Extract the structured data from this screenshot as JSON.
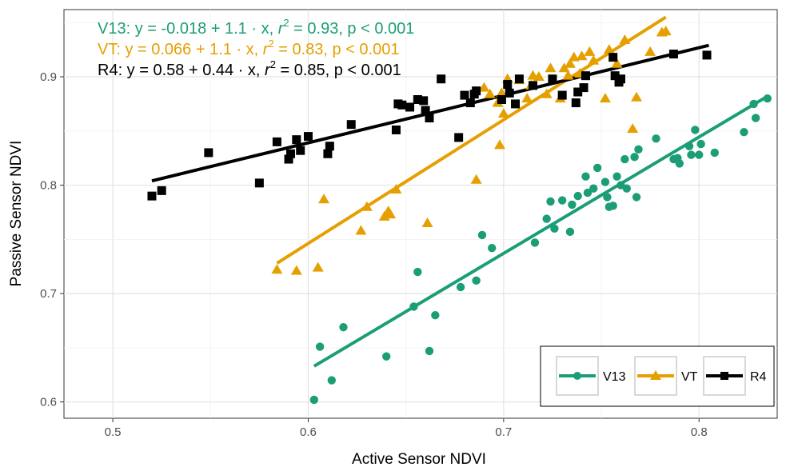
{
  "chart_data": {
    "type": "scatter",
    "xlabel": "Active Sensor NDVI",
    "ylabel": "Passive Sensor NDVI",
    "xlim": [
      0.475,
      0.84
    ],
    "ylim": [
      0.585,
      0.962
    ],
    "xticks": [
      0.5,
      0.6,
      0.7,
      0.8
    ],
    "yticks": [
      0.6,
      0.7,
      0.8,
      0.9
    ],
    "xtick_labels": [
      "0.5",
      "0.6",
      "0.7",
      "0.8"
    ],
    "ytick_labels": [
      "0.6",
      "0.7",
      "0.8",
      "0.9"
    ],
    "grid": true,
    "legend_position": "bottom-right",
    "annotations": [
      {
        "series": "V13",
        "prefix": "V13: y = -0.018 + 1.1 · x,  ",
        "r": "r",
        "sup": "2",
        "suffix": " = 0.93, p < 0.001"
      },
      {
        "series": "VT",
        "prefix": "VT: y = 0.066 + 1.1 · x,  ",
        "r": "r",
        "sup": "2",
        "suffix": " = 0.83, p < 0.001"
      },
      {
        "series": "R4",
        "prefix": "R4: y = 0.58 + 0.44 · x,  ",
        "r": "r",
        "sup": "2",
        "suffix": " = 0.85, p < 0.001"
      }
    ],
    "series": [
      {
        "name": "V13",
        "color": "#1b9e77",
        "marker": "circle",
        "fit": {
          "x": [
            0.603,
            0.835
          ],
          "y": [
            0.633,
            0.882
          ]
        },
        "points": [
          [
            0.603,
            0.602
          ],
          [
            0.606,
            0.651
          ],
          [
            0.612,
            0.62
          ],
          [
            0.618,
            0.669
          ],
          [
            0.64,
            0.642
          ],
          [
            0.654,
            0.688
          ],
          [
            0.656,
            0.72
          ],
          [
            0.662,
            0.647
          ],
          [
            0.665,
            0.68
          ],
          [
            0.678,
            0.706
          ],
          [
            0.686,
            0.712
          ],
          [
            0.689,
            0.754
          ],
          [
            0.694,
            0.742
          ],
          [
            0.716,
            0.747
          ],
          [
            0.722,
            0.769
          ],
          [
            0.724,
            0.785
          ],
          [
            0.726,
            0.76
          ],
          [
            0.73,
            0.786
          ],
          [
            0.734,
            0.757
          ],
          [
            0.735,
            0.782
          ],
          [
            0.738,
            0.79
          ],
          [
            0.742,
            0.808
          ],
          [
            0.743,
            0.793
          ],
          [
            0.746,
            0.797
          ],
          [
            0.748,
            0.816
          ],
          [
            0.752,
            0.803
          ],
          [
            0.753,
            0.789
          ],
          [
            0.754,
            0.78
          ],
          [
            0.756,
            0.781
          ],
          [
            0.758,
            0.808
          ],
          [
            0.76,
            0.8
          ],
          [
            0.762,
            0.824
          ],
          [
            0.763,
            0.797
          ],
          [
            0.767,
            0.826
          ],
          [
            0.768,
            0.789
          ],
          [
            0.769,
            0.833
          ],
          [
            0.778,
            0.843
          ],
          [
            0.787,
            0.824
          ],
          [
            0.789,
            0.825
          ],
          [
            0.79,
            0.82
          ],
          [
            0.795,
            0.836
          ],
          [
            0.796,
            0.828
          ],
          [
            0.798,
            0.851
          ],
          [
            0.8,
            0.828
          ],
          [
            0.801,
            0.838
          ],
          [
            0.808,
            0.83
          ],
          [
            0.823,
            0.849
          ],
          [
            0.828,
            0.875
          ],
          [
            0.829,
            0.862
          ],
          [
            0.835,
            0.88
          ]
        ]
      },
      {
        "name": "VT",
        "color": "#e69f00",
        "marker": "triangle",
        "fit": {
          "x": [
            0.584,
            0.783
          ],
          "y": [
            0.728,
            0.955
          ]
        },
        "points": [
          [
            0.584,
            0.722
          ],
          [
            0.594,
            0.721
          ],
          [
            0.605,
            0.724
          ],
          [
            0.608,
            0.787
          ],
          [
            0.627,
            0.758
          ],
          [
            0.63,
            0.78
          ],
          [
            0.639,
            0.771
          ],
          [
            0.641,
            0.776
          ],
          [
            0.642,
            0.773
          ],
          [
            0.645,
            0.796
          ],
          [
            0.661,
            0.765
          ],
          [
            0.686,
            0.805
          ],
          [
            0.69,
            0.89
          ],
          [
            0.693,
            0.884
          ],
          [
            0.697,
            0.876
          ],
          [
            0.698,
            0.837
          ],
          [
            0.699,
            0.885
          ],
          [
            0.7,
            0.866
          ],
          [
            0.702,
            0.898
          ],
          [
            0.708,
            0.897
          ],
          [
            0.712,
            0.88
          ],
          [
            0.714,
            0.892
          ],
          [
            0.715,
            0.901
          ],
          [
            0.718,
            0.9
          ],
          [
            0.722,
            0.884
          ],
          [
            0.724,
            0.908
          ],
          [
            0.729,
            0.88
          ],
          [
            0.731,
            0.908
          ],
          [
            0.733,
            0.901
          ],
          [
            0.734,
            0.912
          ],
          [
            0.736,
            0.918
          ],
          [
            0.739,
            0.903
          ],
          [
            0.74,
            0.919
          ],
          [
            0.744,
            0.923
          ],
          [
            0.746,
            0.915
          ],
          [
            0.752,
            0.88
          ],
          [
            0.754,
            0.925
          ],
          [
            0.758,
            0.912
          ],
          [
            0.762,
            0.934
          ],
          [
            0.766,
            0.852
          ],
          [
            0.768,
            0.881
          ],
          [
            0.775,
            0.923
          ],
          [
            0.781,
            0.941
          ],
          [
            0.783,
            0.942
          ]
        ]
      },
      {
        "name": "R4",
        "color": "#000000",
        "marker": "square",
        "fit": {
          "x": [
            0.52,
            0.805
          ],
          "y": [
            0.804,
            0.929
          ]
        },
        "points": [
          [
            0.52,
            0.79
          ],
          [
            0.525,
            0.795
          ],
          [
            0.549,
            0.83
          ],
          [
            0.575,
            0.802
          ],
          [
            0.584,
            0.84
          ],
          [
            0.59,
            0.824
          ],
          [
            0.591,
            0.829
          ],
          [
            0.594,
            0.842
          ],
          [
            0.596,
            0.832
          ],
          [
            0.6,
            0.845
          ],
          [
            0.61,
            0.829
          ],
          [
            0.611,
            0.836
          ],
          [
            0.622,
            0.856
          ],
          [
            0.645,
            0.851
          ],
          [
            0.646,
            0.875
          ],
          [
            0.648,
            0.874
          ],
          [
            0.652,
            0.872
          ],
          [
            0.656,
            0.879
          ],
          [
            0.659,
            0.878
          ],
          [
            0.66,
            0.869
          ],
          [
            0.662,
            0.862
          ],
          [
            0.668,
            0.898
          ],
          [
            0.677,
            0.844
          ],
          [
            0.68,
            0.883
          ],
          [
            0.683,
            0.876
          ],
          [
            0.685,
            0.884
          ],
          [
            0.686,
            0.887
          ],
          [
            0.699,
            0.879
          ],
          [
            0.702,
            0.893
          ],
          [
            0.703,
            0.885
          ],
          [
            0.706,
            0.875
          ],
          [
            0.708,
            0.898
          ],
          [
            0.715,
            0.892
          ],
          [
            0.725,
            0.898
          ],
          [
            0.73,
            0.883
          ],
          [
            0.737,
            0.876
          ],
          [
            0.738,
            0.886
          ],
          [
            0.741,
            0.89
          ],
          [
            0.742,
            0.901
          ],
          [
            0.756,
            0.918
          ],
          [
            0.757,
            0.901
          ],
          [
            0.759,
            0.895
          ],
          [
            0.76,
            0.898
          ],
          [
            0.787,
            0.921
          ],
          [
            0.804,
            0.92
          ]
        ]
      }
    ]
  }
}
